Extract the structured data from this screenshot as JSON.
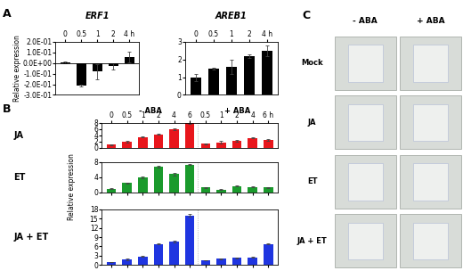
{
  "panel_labels": [
    "A",
    "B",
    "C"
  ],
  "chart_data": [
    {
      "type": "bar",
      "title": "ERF1",
      "y_label": "Relative expression",
      "categories": [
        "0",
        "0.5",
        "1",
        "2",
        "4 h"
      ],
      "values": [
        0.005,
        -0.21,
        -0.08,
        -0.03,
        0.06
      ],
      "errors": [
        0.01,
        0.01,
        0.07,
        0.03,
        0.05
      ],
      "color": "#000000",
      "ylim": [
        -0.3,
        0.2
      ],
      "yticks": [
        {
          "value": -0.3,
          "label": "-3.0E-01"
        },
        {
          "value": -0.2,
          "label": "-2.0E-01"
        },
        {
          "value": -0.1,
          "label": "-1.0E-01"
        },
        {
          "value": 0.0,
          "label": "0.0E+00"
        },
        {
          "value": 0.1,
          "label": "1.0E-01"
        },
        {
          "value": 0.2,
          "label": "2.0E-01"
        }
      ]
    },
    {
      "type": "bar",
      "title": "AREB1",
      "categories": [
        "0",
        "0.5",
        "1",
        "2",
        "4 h"
      ],
      "values": [
        1.0,
        1.5,
        1.6,
        2.2,
        2.5
      ],
      "errors": [
        0.2,
        0.05,
        0.4,
        0.1,
        0.3
      ],
      "color": "#000000",
      "ylim": [
        0,
        3
      ],
      "yticks": [
        0,
        1,
        2,
        3
      ]
    },
    {
      "type": "bar",
      "title": "JA",
      "categories": [
        "0",
        "0.5",
        "1",
        "2",
        "4",
        "6",
        "0.5",
        "1",
        "2",
        "4",
        "6 h"
      ],
      "values": [
        1.0,
        2.0,
        3.5,
        4.3,
        6.0,
        7.8,
        1.3,
        1.8,
        2.2,
        3.2,
        2.5
      ],
      "errors": [
        0.1,
        0.3,
        0.2,
        0.2,
        0.3,
        0.3,
        0.1,
        0.3,
        0.3,
        0.2,
        0.3
      ],
      "color": "#e8161c",
      "ylim": [
        0,
        8
      ],
      "yticks": [
        0,
        2,
        4,
        6,
        8
      ]
    },
    {
      "type": "bar",
      "title": "ET",
      "categories": [
        "0",
        "0.5",
        "1",
        "2",
        "4",
        "6",
        "0.5",
        "1",
        "2",
        "4",
        "6 h"
      ],
      "values": [
        1.0,
        2.5,
        4.0,
        6.7,
        4.8,
        7.3,
        1.3,
        0.8,
        1.7,
        1.5,
        1.3
      ],
      "errors": [
        0.1,
        0.1,
        0.2,
        0.2,
        0.4,
        0.2,
        0.1,
        0.1,
        0.1,
        0.1,
        0.1
      ],
      "color": "#1a9a2c",
      "ylim": [
        0,
        8
      ],
      "yticks": [
        0,
        4,
        8
      ]
    },
    {
      "type": "bar",
      "title": "JA + ET",
      "categories": [
        "0",
        "0.5",
        "1",
        "2",
        "4",
        "6",
        "0.5",
        "1",
        "2",
        "4",
        "6 h"
      ],
      "values": [
        1.0,
        1.8,
        2.8,
        6.8,
        7.5,
        16.0,
        1.5,
        2.0,
        2.3,
        2.5,
        6.8
      ],
      "errors": [
        0.1,
        0.2,
        0.2,
        0.2,
        0.3,
        0.5,
        0.1,
        0.2,
        0.2,
        0.2,
        0.2
      ],
      "color": "#1f35e0",
      "ylim": [
        0,
        18
      ],
      "yticks": [
        0,
        3,
        6,
        9,
        12,
        15,
        18
      ]
    }
  ],
  "panel_b": {
    "groups": [
      "- ABA",
      "+ ABA"
    ],
    "y_label": "Relative expression"
  },
  "panel_c": {
    "columns": [
      "- ABA",
      "+ ABA"
    ],
    "rows": [
      "Mock",
      "JA",
      "ET",
      "JA + ET"
    ]
  }
}
